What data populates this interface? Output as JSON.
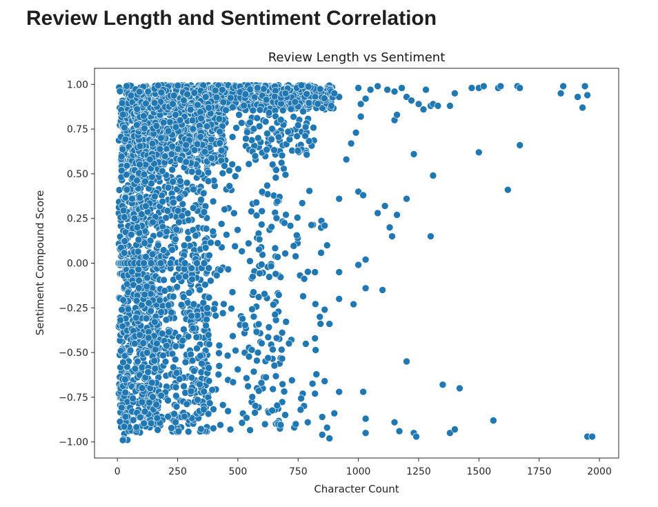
{
  "page": {
    "heading": "Review Length and Sentiment Correlation"
  },
  "chart_data": {
    "type": "scatter",
    "title": "Review Length vs Sentiment",
    "xlabel": "Character Count",
    "ylabel": "Sentiment Compound Score",
    "xlim": [
      -95,
      2080
    ],
    "ylim": [
      -1.09,
      1.09
    ],
    "xticks": [
      0,
      250,
      500,
      750,
      1000,
      1250,
      1500,
      1750,
      2000
    ],
    "xtick_labels": [
      "0",
      "250",
      "500",
      "750",
      "1000",
      "1250",
      "1500",
      "1750",
      "2000"
    ],
    "yticks": [
      -1.0,
      -0.75,
      -0.5,
      -0.25,
      0.0,
      0.25,
      0.5,
      0.75,
      1.0
    ],
    "ytick_labels": [
      "−1.00",
      "−0.75",
      "−0.50",
      "−0.25",
      "0.00",
      "0.25",
      "0.50",
      "0.75",
      "1.00"
    ],
    "grid": false,
    "color": "#1f77b4",
    "edge_color": "#ffffff",
    "points": [
      [
        1000,
        0.98
      ],
      [
        1050,
        0.97
      ],
      [
        1080,
        0.99
      ],
      [
        1120,
        0.97
      ],
      [
        1150,
        0.96
      ],
      [
        1180,
        0.98
      ],
      [
        1200,
        0.93
      ],
      [
        1220,
        0.91
      ],
      [
        1250,
        0.89
      ],
      [
        1270,
        0.86
      ],
      [
        1300,
        0.88
      ],
      [
        1310,
        0.89
      ],
      [
        1280,
        0.97
      ],
      [
        1330,
        0.88
      ],
      [
        1380,
        0.88
      ],
      [
        1400,
        0.95
      ],
      [
        1470,
        0.98
      ],
      [
        1500,
        0.98
      ],
      [
        1520,
        0.99
      ],
      [
        1580,
        0.98
      ],
      [
        1590,
        0.99
      ],
      [
        1660,
        0.99
      ],
      [
        1670,
        0.98
      ],
      [
        1840,
        0.95
      ],
      [
        1850,
        0.99
      ],
      [
        1910,
        0.93
      ],
      [
        1940,
        0.99
      ],
      [
        1950,
        0.94
      ],
      [
        1930,
        0.87
      ],
      [
        1010,
        0.89
      ],
      [
        1030,
        0.92
      ],
      [
        1150,
        0.8
      ],
      [
        1160,
        0.83
      ],
      [
        1010,
        0.82
      ],
      [
        990,
        0.73
      ],
      [
        970,
        0.67
      ],
      [
        950,
        0.58
      ],
      [
        920,
        0.93
      ],
      [
        900,
        0.95
      ],
      [
        1500,
        0.62
      ],
      [
        1670,
        0.66
      ],
      [
        1230,
        0.61
      ],
      [
        1310,
        0.49
      ],
      [
        1620,
        0.41
      ],
      [
        1000,
        0.4
      ],
      [
        1020,
        0.38
      ],
      [
        1080,
        0.28
      ],
      [
        1110,
        0.32
      ],
      [
        1160,
        0.27
      ],
      [
        1200,
        0.36
      ],
      [
        1130,
        0.2
      ],
      [
        1140,
        0.15
      ],
      [
        1300,
        0.15
      ],
      [
        920,
        0.36
      ],
      [
        860,
        0.21
      ],
      [
        870,
        0.1
      ],
      [
        1030,
        0.02
      ],
      [
        1000,
        -0.01
      ],
      [
        920,
        -0.05
      ],
      [
        820,
        -0.05
      ],
      [
        1030,
        -0.14
      ],
      [
        1100,
        -0.15
      ],
      [
        980,
        -0.23
      ],
      [
        920,
        -0.2
      ],
      [
        860,
        -0.26
      ],
      [
        840,
        -0.3
      ],
      [
        880,
        -0.34
      ],
      [
        820,
        -0.42
      ],
      [
        1200,
        -0.55
      ],
      [
        860,
        -0.66
      ],
      [
        920,
        -0.72
      ],
      [
        1020,
        -0.72
      ],
      [
        1350,
        -0.68
      ],
      [
        1420,
        -0.7
      ],
      [
        850,
        -0.86
      ],
      [
        900,
        -0.84
      ],
      [
        870,
        -0.92
      ],
      [
        880,
        -0.98
      ],
      [
        850,
        -0.96
      ],
      [
        1030,
        -0.87
      ],
      [
        1030,
        -0.95
      ],
      [
        1150,
        -0.89
      ],
      [
        1170,
        -0.94
      ],
      [
        1230,
        -0.95
      ],
      [
        1240,
        -0.97
      ],
      [
        1380,
        -0.95
      ],
      [
        1400,
        -0.93
      ],
      [
        1560,
        -0.88
      ],
      [
        1950,
        -0.97
      ],
      [
        1970,
        -0.97
      ],
      [
        820,
        -0.73
      ],
      [
        790,
        -0.89
      ],
      [
        760,
        -0.82
      ],
      [
        740,
        -0.9
      ]
    ],
    "dense_clusters": [
      {
        "x_range": [
          5,
          60
        ],
        "y_range": [
          -1.0,
          1.0
        ],
        "count": 190
      },
      {
        "x_range": [
          10,
          180
        ],
        "y_range": [
          -0.92,
          1.0
        ],
        "count": 620
      },
      {
        "x_range": [
          60,
          380
        ],
        "y_range": [
          -0.95,
          1.0
        ],
        "count": 900
      },
      {
        "x_range": [
          80,
          450
        ],
        "y_range": [
          0.55,
          1.0
        ],
        "count": 520
      },
      {
        "x_range": [
          150,
          900
        ],
        "y_range": [
          0.86,
          1.0
        ],
        "count": 600
      },
      {
        "x_range": [
          300,
          700
        ],
        "y_range": [
          -0.95,
          0.99
        ],
        "count": 260
      },
      {
        "x_range": [
          500,
          820
        ],
        "y_range": [
          0.6,
          1.0
        ],
        "count": 120
      },
      {
        "x_range": [
          550,
          850
        ],
        "y_range": [
          -0.95,
          0.65
        ],
        "count": 80
      }
    ],
    "neutral_points": [
      [
        5,
        0.0
      ],
      [
        10,
        0.0
      ],
      [
        15,
        0.0
      ],
      [
        22,
        0.0
      ],
      [
        30,
        0.0
      ],
      [
        40,
        0.0
      ],
      [
        55,
        0.0
      ],
      [
        70,
        0.0
      ],
      [
        90,
        0.0
      ],
      [
        110,
        0.0
      ],
      [
        140,
        0.0
      ],
      [
        180,
        0.0
      ],
      [
        220,
        0.0
      ],
      [
        280,
        0.0
      ],
      [
        330,
        0.0
      ],
      [
        360,
        0.0
      ]
    ]
  }
}
